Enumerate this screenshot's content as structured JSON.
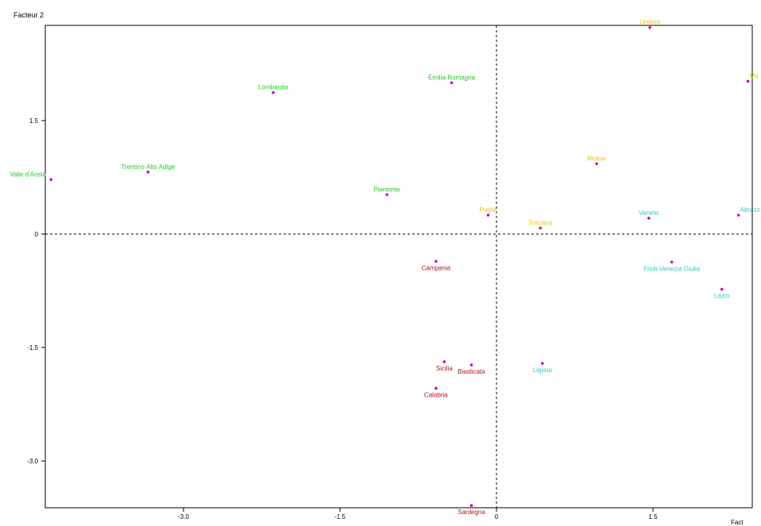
{
  "chart_data": {
    "type": "scatter",
    "title": "",
    "ylabel": "Facteur 2",
    "xlabel": "Fact",
    "xlim": [
      -4.3,
      2.4
    ],
    "ylim": [
      -3.6,
      2.75
    ],
    "xticks": [
      "-3.0",
      "-1.5",
      "0",
      "1.5"
    ],
    "xtick_values": [
      -3.0,
      -1.5,
      0,
      1.5
    ],
    "yticks": [
      "1.5",
      "0",
      "-1.5",
      "-3.0"
    ],
    "ytick_values": [
      1.5,
      0,
      -1.5,
      -3.0
    ],
    "grid": false,
    "reference_lines": "dashed lines at x=0 and y=0",
    "point_color": "#cc00cc",
    "group_colors": {
      "green": "#22cc22",
      "yellow": "#e6cc00",
      "cyan": "#22cccc",
      "red": "#bb1111"
    },
    "points": [
      {
        "label": "Valle d'Aosta",
        "x": -4.27,
        "y": 0.72,
        "group": "green"
      },
      {
        "label": "Trentino-Alto Adige",
        "x": -3.34,
        "y": 0.82,
        "group": "green"
      },
      {
        "label": "Lombardia",
        "x": -2.14,
        "y": 1.87,
        "group": "green"
      },
      {
        "label": "Emilia-Romagna",
        "x": -0.43,
        "y": 2.0,
        "group": "green"
      },
      {
        "label": "Piemonte",
        "x": -1.05,
        "y": 0.52,
        "group": "green"
      },
      {
        "label": "Umbria",
        "x": 1.47,
        "y": 2.73,
        "group": "yellow"
      },
      {
        "label": "Ma",
        "x": 2.41,
        "y": 2.02,
        "group": "yellow"
      },
      {
        "label": "Molise",
        "x": 0.96,
        "y": 0.93,
        "group": "yellow"
      },
      {
        "label": "Puglia",
        "x": -0.08,
        "y": 0.25,
        "group": "yellow"
      },
      {
        "label": "Toscana",
        "x": 0.42,
        "y": 0.08,
        "group": "yellow"
      },
      {
        "label": "Veneto",
        "x": 1.46,
        "y": 0.21,
        "group": "cyan"
      },
      {
        "label": "Abruzz",
        "x": 2.32,
        "y": 0.25,
        "group": "cyan"
      },
      {
        "label": "Friuli-Venezia Giulia",
        "x": 1.68,
        "y": -0.37,
        "group": "cyan"
      },
      {
        "label": "Lazio",
        "x": 2.16,
        "y": -0.73,
        "group": "cyan"
      },
      {
        "label": "Liguria",
        "x": 0.44,
        "y": -1.71,
        "group": "cyan"
      },
      {
        "label": "Campania",
        "x": -0.58,
        "y": -0.36,
        "group": "red"
      },
      {
        "label": "Sicilia",
        "x": -0.5,
        "y": -1.69,
        "group": "red"
      },
      {
        "label": "Basilicata",
        "x": -0.24,
        "y": -1.73,
        "group": "red"
      },
      {
        "label": "Calabria",
        "x": -0.58,
        "y": -2.04,
        "group": "red"
      },
      {
        "label": "Sardegna",
        "x": -0.24,
        "y": -3.59,
        "group": "red"
      }
    ]
  }
}
